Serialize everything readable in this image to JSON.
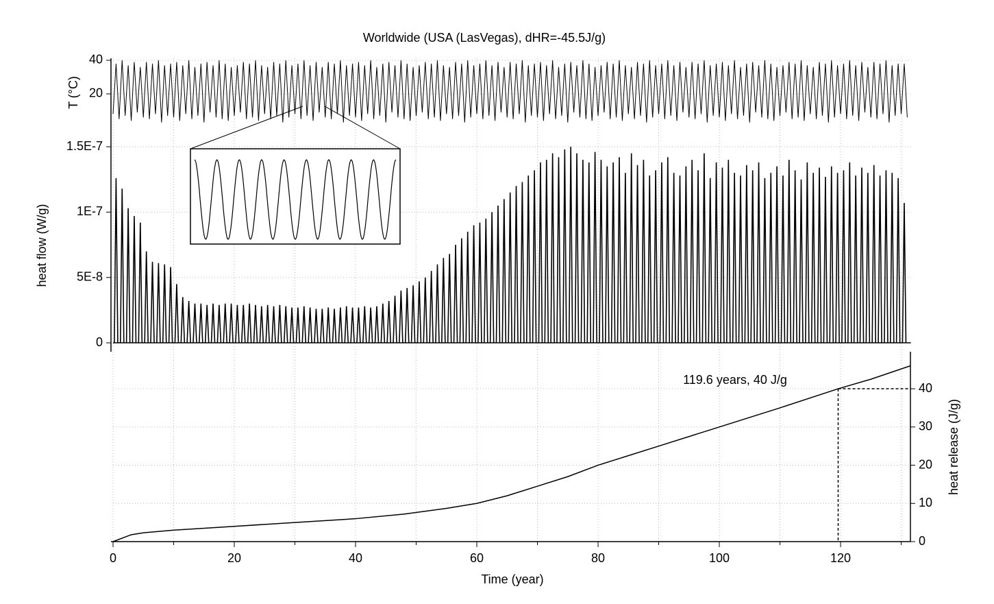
{
  "chart_data": [
    {
      "type": "line",
      "title": "Worldwide (USA (LasVegas), dHR=-45.5J/g)",
      "ylabel": "T (°C)",
      "color": "#000000",
      "xlim": [
        0,
        131.6
      ],
      "ylim": [
        0,
        41.2
      ],
      "yticks": [
        20,
        40
      ],
      "grid": true,
      "x": [
        0,
        0.5,
        1,
        1.5,
        2,
        2.5,
        3,
        3.5,
        4,
        4.5,
        5,
        5.5,
        6,
        6.5,
        7,
        7.5,
        8,
        8.5,
        9,
        9.5,
        10,
        10.5,
        11,
        11.5,
        12,
        12.5,
        13,
        13.5,
        14,
        14.5,
        15,
        15.5,
        16,
        16.5,
        17,
        17.5,
        18,
        18.5,
        19,
        19.5,
        20,
        20.5,
        21,
        21.5,
        22,
        22.5,
        23,
        23.5,
        24,
        24.5,
        25,
        25.5,
        26,
        26.5,
        27,
        27.5,
        28,
        28.5,
        29,
        29.5,
        30,
        30.5,
        31,
        31.5,
        32,
        32.5,
        33,
        33.5,
        34,
        34.5,
        35,
        35.5,
        36,
        36.5,
        37,
        37.5,
        38,
        38.5,
        39,
        39.5,
        40,
        40.5,
        41,
        41.5,
        42,
        42.5,
        43,
        43.5,
        44,
        44.5,
        45,
        45.5,
        46,
        46.5,
        47,
        47.5,
        48,
        48.5,
        49,
        49.5,
        50,
        50.5,
        51,
        51.5,
        52,
        52.5,
        53,
        53.5,
        54,
        54.5,
        55,
        55.5,
        56,
        56.5,
        57,
        57.5,
        58,
        58.5,
        59,
        59.5,
        60,
        60.5,
        61,
        61.5,
        62,
        62.5,
        63,
        63.5,
        64,
        64.5,
        65,
        65.5,
        66,
        66.5,
        67,
        67.5,
        68,
        68.5,
        69,
        69.5,
        70,
        70.5,
        71,
        71.5,
        72,
        72.5,
        73,
        73.5,
        74,
        74.5,
        75,
        75.5,
        76,
        76.5,
        77,
        77.5,
        78,
        78.5,
        79,
        79.5,
        80,
        80.5,
        81,
        81.5,
        82,
        82.5,
        83,
        83.5,
        84,
        84.5,
        85,
        85.5,
        86,
        86.5,
        87,
        87.5,
        88,
        88.5,
        89,
        89.5,
        90,
        90.5,
        91,
        91.5,
        92,
        92.5,
        93,
        93.5,
        94,
        94.5,
        95,
        95.5,
        96,
        96.5,
        97,
        97.5,
        98,
        98.5,
        99,
        99.5,
        100,
        100.5,
        101,
        101.5,
        102,
        102.5,
        103,
        103.5,
        104,
        104.5,
        105,
        105.5,
        106,
        106.5,
        107,
        107.5,
        108,
        108.5,
        109,
        109.5,
        110,
        110.5,
        111,
        111.5,
        112,
        112.5,
        113,
        113.5,
        114,
        114.5,
        115,
        115.5,
        116,
        116.5,
        117,
        117.5,
        118,
        118.5,
        119,
        119.5,
        120,
        120.5,
        121,
        121.5,
        122,
        122.5,
        123,
        123.5,
        124,
        124.5,
        125,
        125.5,
        126,
        126.5,
        127,
        127.5,
        128,
        128.5,
        129,
        129.5,
        130,
        130.5,
        131
      ],
      "values": [
        8,
        38,
        5,
        40,
        7,
        37,
        4,
        39,
        9,
        36,
        6,
        39,
        5,
        38,
        8,
        40,
        3,
        37,
        7,
        38,
        6,
        39,
        4,
        37,
        8,
        40,
        5,
        36,
        7,
        38,
        3,
        39,
        9,
        37,
        6,
        40,
        5,
        38,
        4,
        36,
        7,
        37,
        9,
        39,
        5,
        38,
        6,
        40,
        4,
        37,
        8,
        36,
        5,
        39,
        7,
        38,
        3,
        40,
        6,
        37,
        8,
        38,
        5,
        40,
        7,
        37,
        4,
        39,
        9,
        36,
        6,
        39,
        5,
        38,
        8,
        40,
        3,
        37,
        7,
        38,
        6,
        39,
        4,
        37,
        8,
        40,
        5,
        36,
        7,
        38,
        3,
        39,
        9,
        37,
        6,
        40,
        5,
        38,
        4,
        36,
        7,
        37,
        9,
        39,
        5,
        38,
        6,
        40,
        4,
        37,
        8,
        36,
        5,
        39,
        7,
        38,
        3,
        40,
        6,
        37,
        8,
        38,
        5,
        40,
        7,
        37,
        4,
        39,
        9,
        36,
        6,
        39,
        5,
        38,
        8,
        40,
        3,
        37,
        7,
        38,
        6,
        39,
        4,
        37,
        8,
        40,
        5,
        36,
        7,
        38,
        3,
        39,
        9,
        37,
        6,
        40,
        5,
        38,
        4,
        36,
        7,
        37,
        9,
        39,
        5,
        38,
        6,
        40,
        4,
        37,
        8,
        36,
        5,
        39,
        7,
        38,
        3,
        40,
        6,
        37,
        8,
        38,
        5,
        40,
        7,
        37,
        4,
        39,
        9,
        36,
        6,
        39,
        5,
        38,
        8,
        40,
        3,
        37,
        7,
        38,
        6,
        39,
        4,
        37,
        8,
        40,
        5,
        36,
        7,
        38,
        3,
        39,
        9,
        37,
        6,
        40,
        5,
        38,
        4,
        36,
        7,
        37,
        9,
        39,
        5,
        38,
        6,
        40,
        4,
        37,
        8,
        36,
        5,
        39,
        7,
        38,
        3,
        40,
        6,
        37,
        8,
        38,
        5,
        40,
        7,
        37,
        4,
        39,
        9,
        36,
        6,
        39,
        5,
        38,
        8,
        40,
        3,
        37,
        7,
        38,
        8,
        38,
        6
      ]
    },
    {
      "type": "spike",
      "ylabel": "heat flow (W/g)",
      "color": "#000000",
      "xlim": [
        0,
        131.6
      ],
      "ylim": [
        -6.8e-09,
        1.6e-07
      ],
      "grid": true,
      "yticks": [
        0,
        {
          "value": 5e-08,
          "label": "5E-8"
        },
        {
          "value": 1e-07,
          "label": "1E-7"
        },
        {
          "value": 1.5e-07,
          "label": "1.5E-7"
        }
      ],
      "x": [
        0.5,
        1.5,
        2.5,
        3.5,
        4.5,
        5.5,
        6.5,
        7.5,
        8.5,
        9.5,
        10.5,
        11.5,
        12.5,
        13.5,
        14.5,
        15.5,
        16.5,
        17.5,
        18.5,
        19.5,
        20.5,
        21.5,
        22.5,
        23.5,
        24.5,
        25.5,
        26.5,
        27.5,
        28.5,
        29.5,
        30.5,
        31.5,
        32.5,
        33.5,
        34.5,
        35.5,
        36.5,
        37.5,
        38.5,
        39.5,
        40.5,
        41.5,
        42.5,
        43.5,
        44.5,
        45.5,
        46.5,
        47.5,
        48.5,
        49.5,
        50.5,
        51.5,
        52.5,
        53.5,
        54.5,
        55.5,
        56.5,
        57.5,
        58.5,
        59.5,
        60.5,
        61.5,
        62.5,
        63.5,
        64.5,
        65.5,
        66.5,
        67.5,
        68.5,
        69.5,
        70.5,
        71.5,
        72.5,
        73.5,
        74.5,
        75.5,
        76.5,
        77.5,
        78.5,
        79.5,
        80.5,
        81.5,
        82.5,
        83.5,
        84.5,
        85.5,
        86.5,
        87.5,
        88.5,
        89.5,
        90.5,
        91.5,
        92.5,
        93.5,
        94.5,
        95.5,
        96.5,
        97.5,
        98.5,
        99.5,
        100.5,
        101.5,
        102.5,
        103.5,
        104.5,
        105.5,
        106.5,
        107.5,
        108.5,
        109.5,
        110.5,
        111.5,
        112.5,
        113.5,
        114.5,
        115.5,
        116.5,
        117.5,
        118.5,
        119.5,
        120.5,
        121.5,
        122.5,
        123.5,
        124.5,
        125.5,
        126.5,
        127.5,
        128.5,
        129.5,
        130.5
      ],
      "values": [
        1.26e-07,
        1.18e-07,
        1.03e-07,
        9.7e-08,
        9.2e-08,
        7e-08,
        6.2e-08,
        6.1e-08,
        6e-08,
        5.8e-08,
        4.5e-08,
        3.5e-08,
        3.2e-08,
        3e-08,
        3e-08,
        2.9e-08,
        3e-08,
        2.9e-08,
        3e-08,
        3e-08,
        2.9e-08,
        2.9e-08,
        3e-08,
        2.9e-08,
        2.8e-08,
        2.9e-08,
        2.8e-08,
        2.9e-08,
        2.8e-08,
        2.7e-08,
        2.7e-08,
        2.8e-08,
        2.7e-08,
        2.6e-08,
        2.6e-08,
        2.7e-08,
        2.6e-08,
        2.7e-08,
        2.8e-08,
        2.7e-08,
        2.7e-08,
        2.8e-08,
        2.7e-08,
        2.8e-08,
        3e-08,
        3.2e-08,
        3.6e-08,
        4e-08,
        4.2e-08,
        4.4e-08,
        4.7e-08,
        5e-08,
        5.5e-08,
        6e-08,
        6.5e-08,
        6.8e-08,
        7.5e-08,
        8e-08,
        8.5e-08,
        9e-08,
        9.2e-08,
        9.5e-08,
        1e-07,
        1.05e-07,
        1.1e-07,
        1.15e-07,
        1.2e-07,
        1.23e-07,
        1.28e-07,
        1.32e-07,
        1.38e-07,
        1.4e-07,
        1.45e-07,
        1.42e-07,
        1.48e-07,
        1.5e-07,
        1.45e-07,
        1.4e-07,
        1.38e-07,
        1.46e-07,
        1.4e-07,
        1.35e-07,
        1.38e-07,
        1.42e-07,
        1.3e-07,
        1.45e-07,
        1.36e-07,
        1.4e-07,
        1.28e-07,
        1.32e-07,
        1.38e-07,
        1.42e-07,
        1.3e-07,
        1.28e-07,
        1.35e-07,
        1.4e-07,
        1.32e-07,
        1.45e-07,
        1.26e-07,
        1.38e-07,
        1.34e-07,
        1.4e-07,
        1.3e-07,
        1.28e-07,
        1.36e-07,
        1.32e-07,
        1.38e-07,
        1.26e-07,
        1.3e-07,
        1.35e-07,
        1.28e-07,
        1.4e-07,
        1.32e-07,
        1.25e-07,
        1.38e-07,
        1.3e-07,
        1.34e-07,
        1.27e-07,
        1.35e-07,
        1.3e-07,
        1.32e-07,
        1.38e-07,
        1.28e-07,
        1.34e-07,
        1.3e-07,
        1.36e-07,
        1.28e-07,
        1.32e-07,
        1.3e-07,
        1.26e-07,
        1.07e-07
      ]
    },
    {
      "type": "line",
      "ylabel": "heat release (J/g)",
      "xlabel": "Time (year)",
      "color": "#000000",
      "xlim": [
        0,
        131.6
      ],
      "ylim": [
        0,
        49.7
      ],
      "yticks": [
        0,
        10,
        20,
        30,
        40
      ],
      "grid": true,
      "xticks": [
        0,
        20,
        40,
        60,
        80,
        100,
        120
      ],
      "xminorticks": [
        10,
        30,
        50,
        70,
        90,
        110,
        130
      ],
      "x": [
        0,
        3,
        5,
        10,
        20,
        30,
        40,
        48,
        55,
        60,
        65,
        70,
        75,
        80,
        85,
        90,
        95,
        100,
        110,
        119.6,
        125,
        131.5
      ],
      "values": [
        0,
        1.8,
        2.3,
        3,
        4,
        5,
        6,
        7.2,
        8.7,
        10,
        12,
        14.5,
        17,
        20,
        22.5,
        25,
        27.5,
        30,
        35,
        40,
        42.5,
        46
      ],
      "annotation": "119.6 years, 40 J/g",
      "marker": {
        "x": 119.6,
        "y": 40
      }
    }
  ]
}
